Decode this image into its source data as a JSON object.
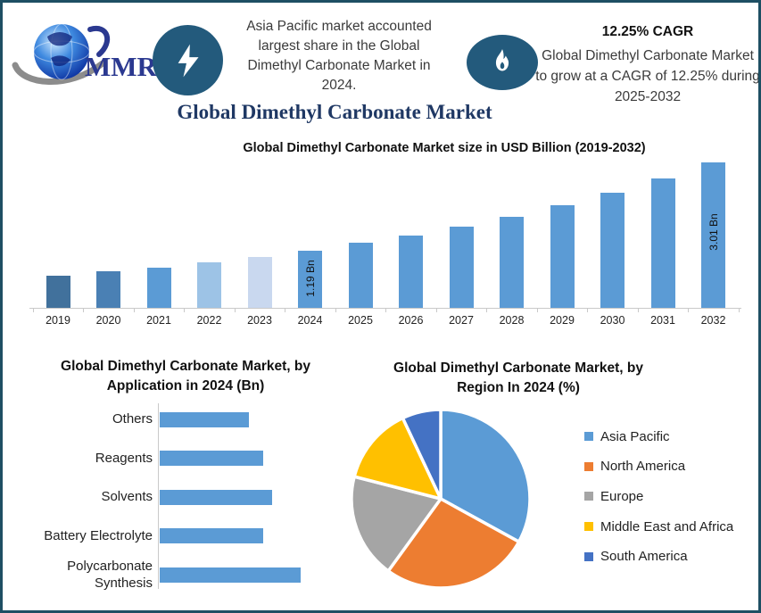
{
  "page": {
    "background": "#ffffff",
    "border_color": "#1e4f63"
  },
  "logo": {
    "text": "MMR"
  },
  "header": {
    "left_note": "Asia Pacific market accounted largest share in the Global Dimethyl Carbonate Market in 2024.",
    "cagr_headline": "12.25% CAGR",
    "cagr_note": "Global Dimethyl Carbonate Market to grow at a CAGR of 12.25% during 2025-2032"
  },
  "main_title": "Global Dimethyl Carbonate Market",
  "icons": {
    "left_badge": "lightning-icon",
    "right_badge": "flame-icon"
  },
  "colors": {
    "primary_bar": "#5b9bd5",
    "badge_blue": "#235a7c",
    "title_navy": "#1f3864"
  },
  "chart_data": [
    {
      "id": "market-size-column-chart",
      "type": "bar",
      "title": "Global Dimethyl Carbonate Market size in USD Billion (2019-2032)",
      "ylabel": "USD Billion",
      "grid": false,
      "ylim": [
        0,
        3.2
      ],
      "categories": [
        "2019",
        "2020",
        "2021",
        "2022",
        "2023",
        "2024",
        "2025",
        "2026",
        "2027",
        "2028",
        "2029",
        "2030",
        "2031",
        "2032"
      ],
      "values": [
        0.67,
        0.75,
        0.84,
        0.94,
        1.06,
        1.19,
        1.34,
        1.5,
        1.68,
        1.89,
        2.12,
        2.38,
        2.67,
        3.01
      ],
      "bar_colors": [
        "#41719c",
        "#4a80b4",
        "#5b9bd5",
        "#9dc3e6",
        "#c9d8ef",
        "#5b9bd5",
        "#5b9bd5",
        "#5b9bd5",
        "#5b9bd5",
        "#5b9bd5",
        "#5b9bd5",
        "#5b9bd5",
        "#5b9bd5",
        "#5b9bd5"
      ],
      "data_labels": [
        {
          "index": 5,
          "category": "2024",
          "text": "1.19 Bn"
        },
        {
          "index": 13,
          "category": "2032",
          "text": "3.01 Bn"
        }
      ]
    },
    {
      "id": "application-bar-chart",
      "type": "bar",
      "orientation": "horizontal",
      "title": "Global Dimethyl Carbonate Market, by Application in 2024 (Bn)",
      "xlim": [
        0,
        0.32
      ],
      "grid": false,
      "categories": [
        "Others",
        "Reagents",
        "Solvents",
        "Battery Electrolyte",
        "Polycarbonate Synthesis"
      ],
      "values": [
        0.19,
        0.22,
        0.24,
        0.22,
        0.3
      ],
      "bar_color": "#5b9bd5"
    },
    {
      "id": "region-pie-chart",
      "type": "pie",
      "title": "Global Dimethyl Carbonate Market, by Region In 2024 (%)",
      "legend_position": "right",
      "labels": [
        "Asia Pacific",
        "North America",
        "Europe",
        "Middle East and Africa",
        "South America"
      ],
      "values": [
        33,
        27,
        19,
        14,
        7
      ],
      "colors": [
        "#5b9bd5",
        "#ed7d31",
        "#a5a5a5",
        "#ffc000",
        "#4472c4"
      ]
    }
  ]
}
